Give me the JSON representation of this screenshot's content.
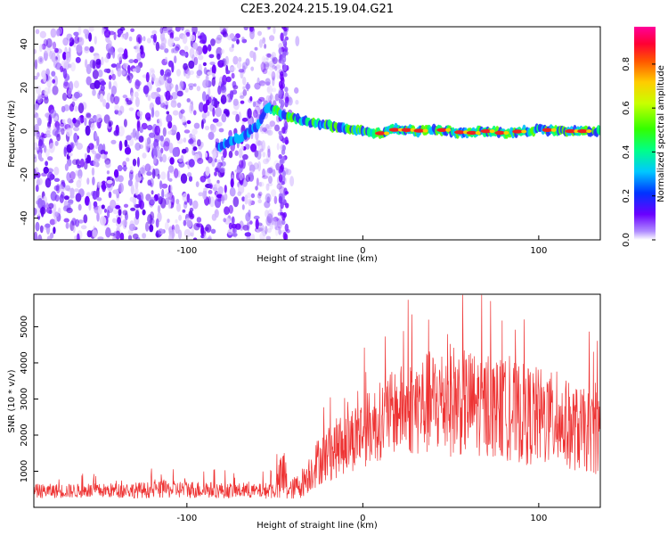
{
  "title": "C2E3.2024.215.19.04.G21",
  "chart_data": [
    {
      "type": "heatmap",
      "xlabel": "Height of straight line (km)",
      "ylabel": "Frequency (Hz)",
      "xlim": [
        -187,
        135
      ],
      "ylim": [
        -50,
        48
      ],
      "xticks": [
        -100,
        0,
        100
      ],
      "xtick_labels": [
        "-100",
        "0",
        "100"
      ],
      "yticks": [
        -40,
        -20,
        0,
        20,
        40
      ],
      "ytick_labels": [
        "-40",
        "-20",
        "0",
        "20",
        "40"
      ],
      "colorbar": {
        "label": "Normalized spectral amplitude",
        "range": [
          0,
          0.97
        ],
        "ticks": [
          0.0,
          0.2,
          0.4,
          0.6,
          0.8
        ],
        "tick_labels": [
          "0.0",
          "0.2",
          "0.4",
          "0.6",
          "0.8"
        ],
        "colormap": "gist_rainbow_r"
      },
      "signal_trace": {
        "x": [
          -80,
          -70,
          -60,
          -55,
          -50,
          -45,
          -40,
          -30,
          -20,
          -10,
          0,
          10,
          20,
          30,
          40,
          50,
          60,
          70,
          80,
          90,
          95,
          100,
          110,
          120,
          135
        ],
        "y": [
          -7,
          -3,
          2,
          11,
          10,
          7,
          6,
          4,
          3,
          1,
          0,
          -1,
          1,
          0,
          1,
          0,
          -1,
          0,
          -1,
          0,
          0,
          1,
          0,
          0,
          0
        ]
      }
    },
    {
      "type": "line",
      "xlabel": "Height of straight line (km)",
      "ylabel": "SNR (10 * v/v)",
      "xlim": [
        -187,
        135
      ],
      "ylim": [
        0,
        5900
      ],
      "xticks": [
        -100,
        0,
        100
      ],
      "xtick_labels": [
        "-100",
        "0",
        "100"
      ],
      "yticks": [
        1000,
        2000,
        3000,
        4000,
        5000
      ],
      "ytick_labels": [
        "1000",
        "2000",
        "3000",
        "4000",
        "5000"
      ],
      "series": [
        {
          "color": "#ee3333",
          "envelope_x": [
            -187,
            -150,
            -120,
            -100,
            -80,
            -60,
            -50,
            -45,
            -42,
            -35,
            -25,
            -10,
            0,
            10,
            20,
            30,
            40,
            50,
            60,
            70,
            80,
            90,
            100,
            110,
            120,
            135
          ],
          "envelope_mean": [
            450,
            460,
            480,
            500,
            470,
            450,
            480,
            900,
            450,
            650,
            1300,
            1800,
            2100,
            2400,
            2700,
            2800,
            2900,
            3000,
            2900,
            2800,
            2700,
            2600,
            2500,
            2400,
            2200,
            2000
          ],
          "envelope_spread": [
            200,
            200,
            230,
            250,
            220,
            200,
            250,
            900,
            250,
            400,
            700,
            900,
            1000,
            1100,
            1200,
            1400,
            1500,
            1600,
            1500,
            1400,
            1400,
            1400,
            1400,
            1300,
            1200,
            1100
          ]
        }
      ]
    }
  ]
}
